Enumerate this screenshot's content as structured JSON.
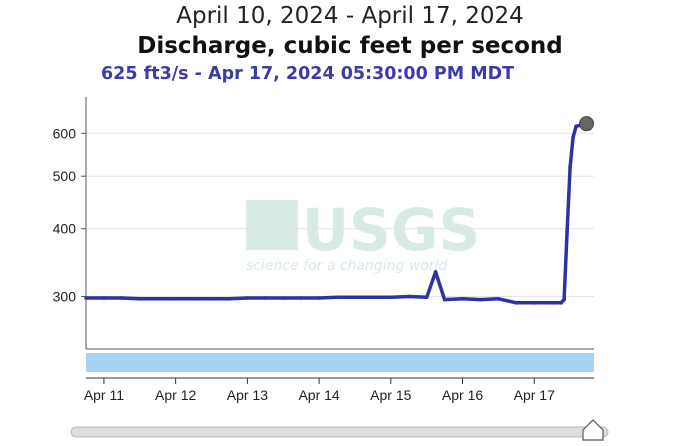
{
  "header": {
    "date_range": "April 10, 2024 - April 17, 2024",
    "parameter": "Discharge, cubic feet per second",
    "latest_readout": "625 ft3/s - Apr 17, 2024 05:30:00 PM MDT"
  },
  "watermark": {
    "logo_text": "USGS",
    "tagline": "science for a changing world"
  },
  "chart_data": {
    "type": "line",
    "title": "Discharge, cubic feet per second",
    "subtitle": "625 ft3/s - Apr 17, 2024 05:30:00 PM MDT",
    "xlabel": "",
    "ylabel": "",
    "y_scale": "log",
    "xlim": [
      "2024-04-10T18:00",
      "2024-04-17T20:00"
    ],
    "ylim": [
      240,
      700
    ],
    "x_ticks": [
      "Apr 11",
      "Apr 12",
      "Apr 13",
      "Apr 14",
      "Apr 15",
      "Apr 16",
      "Apr 17"
    ],
    "y_ticks": [
      300,
      400,
      500,
      600
    ],
    "grid": true,
    "line_color": "#2d33a3",
    "series": [
      {
        "x": [
          "2024-04-10T18:00",
          "2024-04-11T00:00",
          "2024-04-11T06:00",
          "2024-04-11T12:00",
          "2024-04-11T18:00",
          "2024-04-12T00:00",
          "2024-04-12T06:00",
          "2024-04-12T12:00",
          "2024-04-12T18:00",
          "2024-04-13T00:00",
          "2024-04-13T06:00",
          "2024-04-13T12:00",
          "2024-04-13T18:00",
          "2024-04-14T00:00",
          "2024-04-14T06:00",
          "2024-04-14T12:00",
          "2024-04-14T18:00",
          "2024-04-15T00:00",
          "2024-04-15T06:00",
          "2024-04-15T12:00",
          "2024-04-15T15:00",
          "2024-04-15T18:00",
          "2024-04-16T00:00",
          "2024-04-16T06:00",
          "2024-04-16T12:00",
          "2024-04-16T18:00",
          "2024-04-17T00:00",
          "2024-04-17T06:00",
          "2024-04-17T09:00",
          "2024-04-17T10:00",
          "2024-04-17T11:00",
          "2024-04-17T12:00",
          "2024-04-17T13:00",
          "2024-04-17T14:00",
          "2024-04-17T17:30"
        ],
        "values": [
          298,
          298,
          298,
          297,
          297,
          297,
          297,
          297,
          297,
          298,
          298,
          298,
          298,
          298,
          299,
          299,
          299,
          299,
          300,
          299,
          333,
          296,
          297,
          296,
          297,
          292,
          292,
          292,
          292,
          296,
          395,
          520,
          590,
          618,
          625
        ]
      }
    ],
    "latest_point": {
      "x": "2024-04-17T17:30",
      "value": 625
    }
  }
}
